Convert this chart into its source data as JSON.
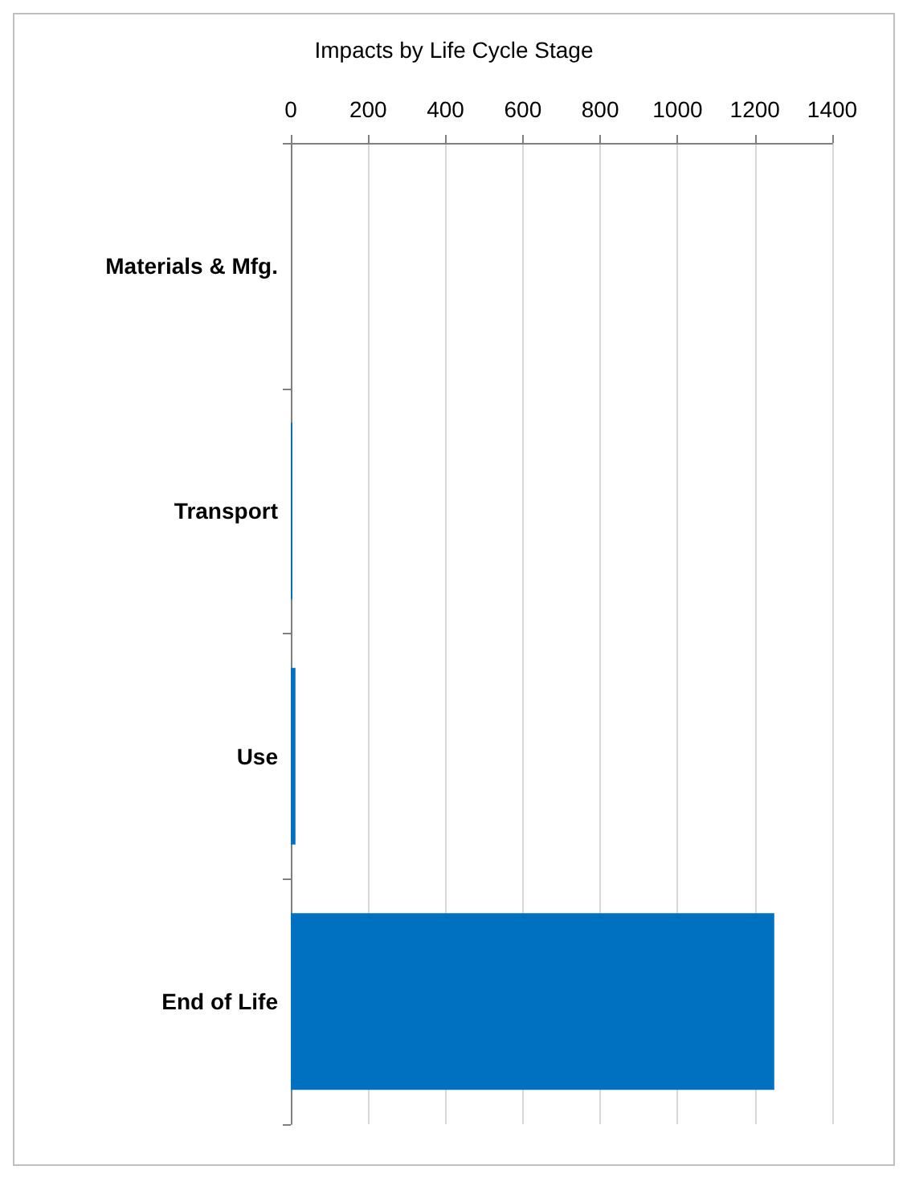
{
  "chart_data": {
    "type": "bar",
    "orientation": "horizontal",
    "title": "Impacts by Life Cycle Stage",
    "categories": [
      "Materials & Mfg.",
      "Transport",
      "Use",
      "End of Life"
    ],
    "values": [
      0,
      4,
      12,
      1250
    ],
    "color": "#0070c0",
    "xlim": [
      0,
      1400
    ],
    "xticks": [
      0,
      200,
      400,
      600,
      800,
      1000,
      1200,
      1400
    ],
    "grid": "x"
  }
}
